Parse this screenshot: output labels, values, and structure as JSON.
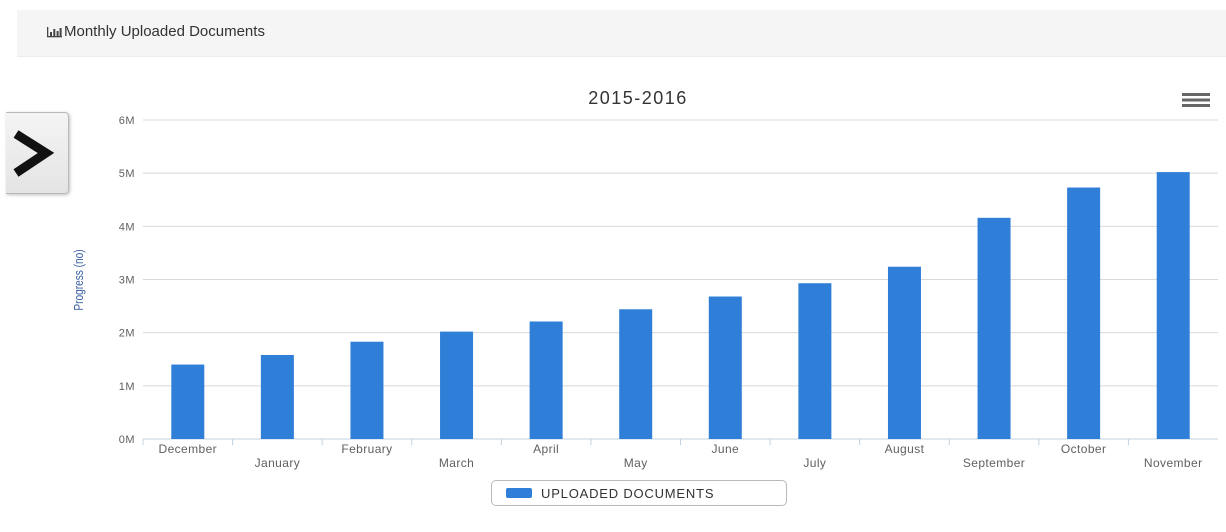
{
  "panel": {
    "title": "Monthly Uploaded Documents",
    "title_icon": "bar-chart-icon"
  },
  "sidebar_toggle": {
    "icon": "chevron-right-icon"
  },
  "chart_menu": {
    "icon": "hamburger-menu-icon"
  },
  "colors": {
    "bar": "#2f7ed8",
    "axis_label": "#3a5fa0",
    "grid": "#d8d8d8",
    "tick_text": "#606060",
    "title_text": "#333333"
  },
  "chart_data": {
    "type": "bar",
    "title": "2015-2016",
    "xlabel": "",
    "ylabel": "Progress (no)",
    "categories": [
      "December",
      "January",
      "February",
      "March",
      "April",
      "May",
      "June",
      "July",
      "August",
      "September",
      "October",
      "November"
    ],
    "series": [
      {
        "name": "UPLOADED DOCUMENTS",
        "values": [
          1400000,
          1580000,
          1830000,
          2020000,
          2210000,
          2440000,
          2680000,
          2930000,
          3240000,
          4160000,
          4730000,
          5020000
        ]
      }
    ],
    "ylim": [
      0,
      6000000
    ],
    "yticks": [
      {
        "value": 0,
        "label": "0M"
      },
      {
        "value": 1000000,
        "label": "1M"
      },
      {
        "value": 2000000,
        "label": "2M"
      },
      {
        "value": 3000000,
        "label": "3M"
      },
      {
        "value": 4000000,
        "label": "4M"
      },
      {
        "value": 5000000,
        "label": "5M"
      },
      {
        "value": 6000000,
        "label": "6M"
      }
    ],
    "grid": true,
    "legend_position": "bottom-center"
  }
}
